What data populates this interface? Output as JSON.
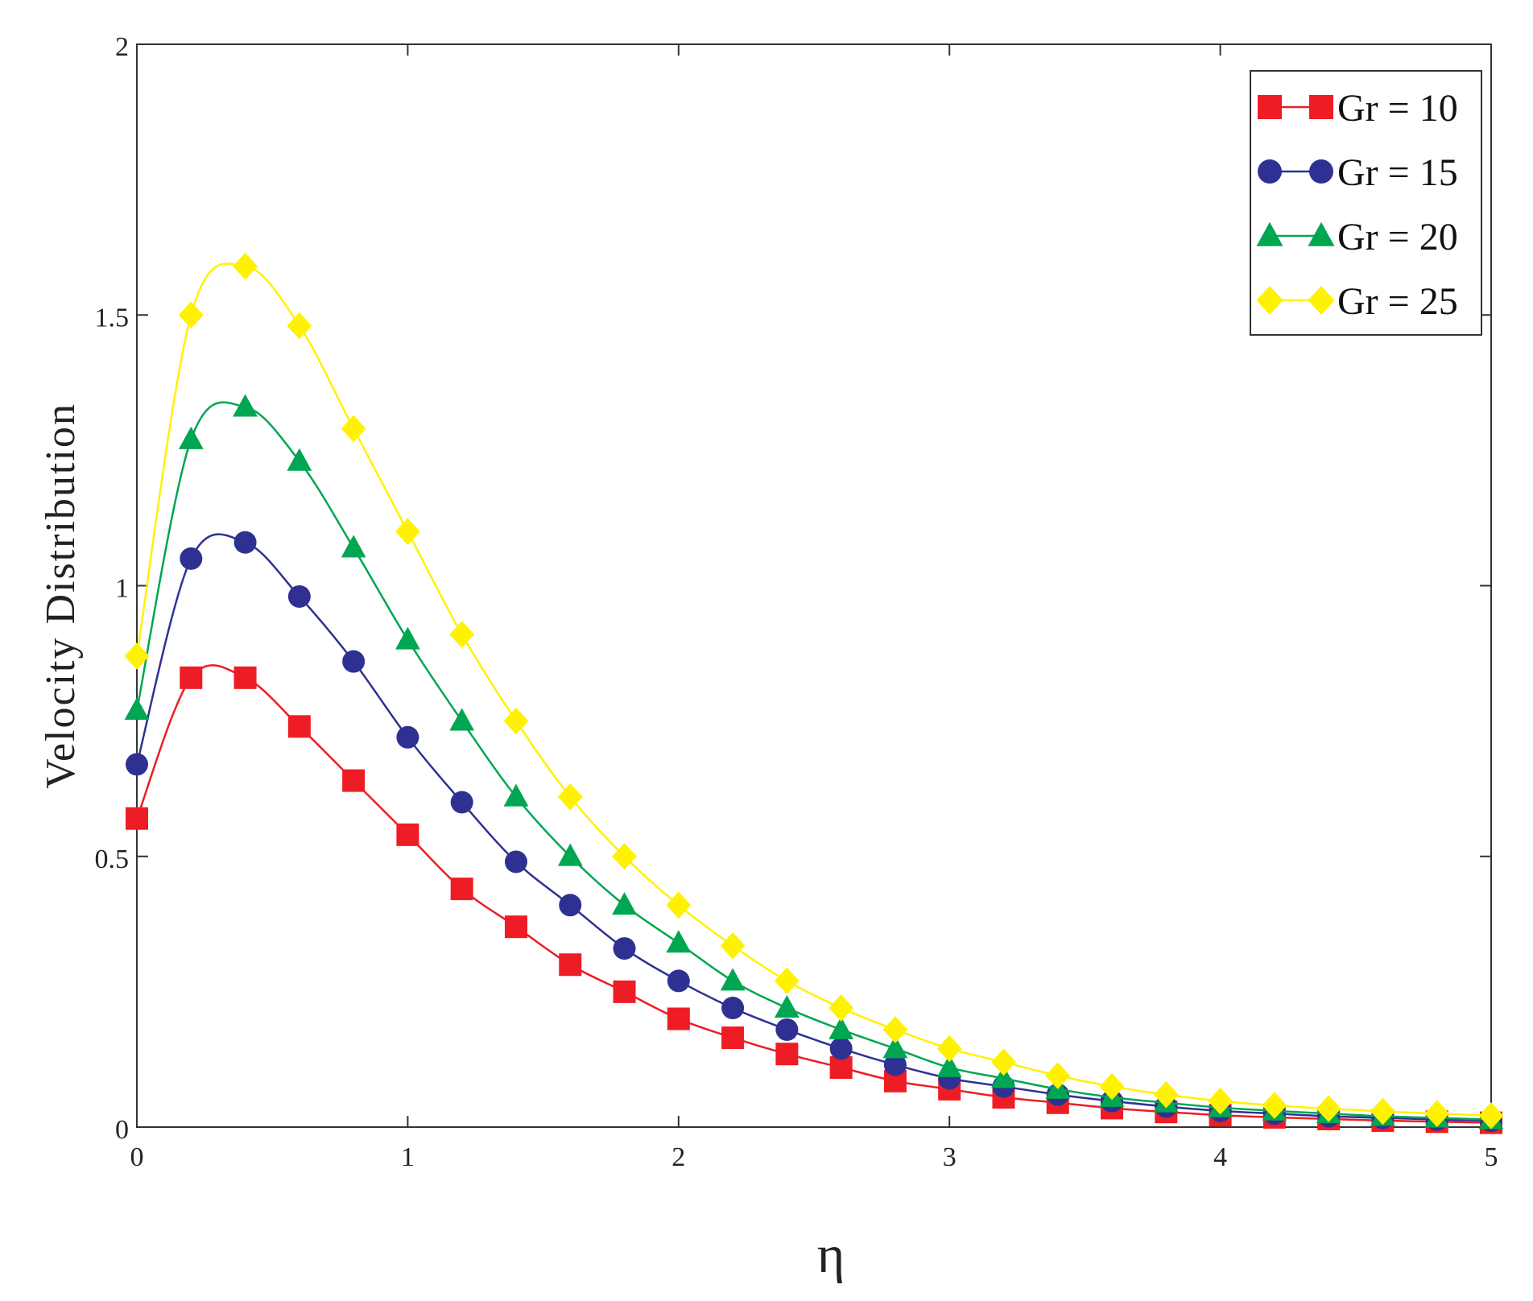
{
  "chart_data": {
    "type": "line",
    "xlabel": "η",
    "ylabel": "Velocity Distribution",
    "xlim": [
      0,
      5
    ],
    "ylim": [
      0,
      2
    ],
    "xticks": [
      "0",
      "1",
      "2",
      "3",
      "4",
      "5"
    ],
    "yticks": [
      "0",
      "0.5",
      "1",
      "1.5",
      "2"
    ],
    "grid": false,
    "legend_position": "top-right",
    "x": [
      0,
      0.2,
      0.4,
      0.6,
      0.8,
      1.0,
      1.2,
      1.4,
      1.6,
      1.8,
      2.0,
      2.2,
      2.4,
      2.6,
      2.8,
      3.0,
      3.2,
      3.4,
      3.6,
      3.8,
      4.0,
      4.2,
      4.4,
      4.6,
      4.8,
      5.0
    ],
    "series": [
      {
        "name": "Gr = 10",
        "marker": "square",
        "color": "#ee1c25",
        "values": [
          0.57,
          0.83,
          0.83,
          0.74,
          0.64,
          0.54,
          0.44,
          0.37,
          0.3,
          0.25,
          0.2,
          0.165,
          0.135,
          0.11,
          0.085,
          0.07,
          0.055,
          0.045,
          0.035,
          0.028,
          0.022,
          0.018,
          0.015,
          0.012,
          0.01,
          0.008
        ]
      },
      {
        "name": "Gr = 15",
        "marker": "circle",
        "color": "#2e3192",
        "values": [
          0.67,
          1.05,
          1.08,
          0.98,
          0.86,
          0.72,
          0.6,
          0.49,
          0.41,
          0.33,
          0.27,
          0.22,
          0.18,
          0.145,
          0.115,
          0.09,
          0.075,
          0.06,
          0.048,
          0.038,
          0.03,
          0.025,
          0.02,
          0.017,
          0.014,
          0.012
        ]
      },
      {
        "name": "Gr = 20",
        "marker": "triangle",
        "color": "#00a651",
        "values": [
          0.77,
          1.27,
          1.33,
          1.23,
          1.07,
          0.9,
          0.75,
          0.61,
          0.5,
          0.41,
          0.34,
          0.27,
          0.22,
          0.18,
          0.145,
          0.11,
          0.09,
          0.07,
          0.055,
          0.045,
          0.036,
          0.03,
          0.025,
          0.02,
          0.017,
          0.014
        ]
      },
      {
        "name": "Gr = 25",
        "marker": "diamond",
        "color": "#fff200",
        "values": [
          0.87,
          1.5,
          1.59,
          1.48,
          1.29,
          1.1,
          0.91,
          0.75,
          0.61,
          0.5,
          0.41,
          0.335,
          0.27,
          0.22,
          0.18,
          0.145,
          0.12,
          0.095,
          0.075,
          0.06,
          0.048,
          0.04,
          0.034,
          0.029,
          0.025,
          0.021
        ]
      }
    ]
  }
}
